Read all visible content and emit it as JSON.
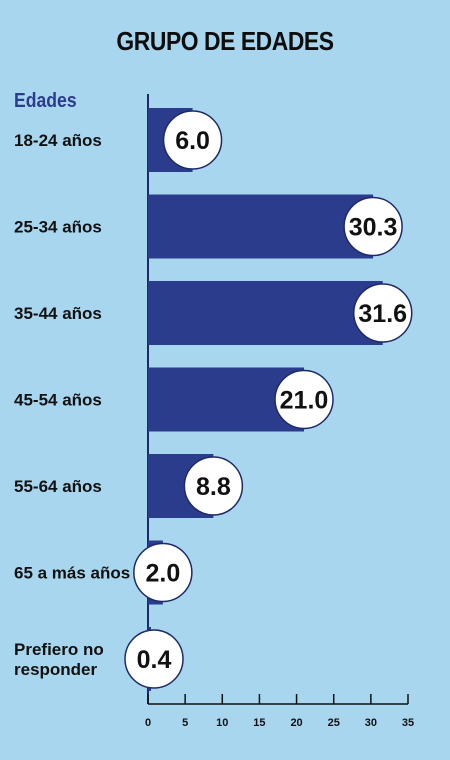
{
  "chart_data": {
    "type": "bar",
    "orientation": "horizontal",
    "title": "GRUPO DE EDADES",
    "category_header": "Edades",
    "categories": [
      "18-24 años",
      "25-34 años",
      "35-44 años",
      "45-54 años",
      "55-64 años",
      "65 a más años",
      "Prefiero no responder"
    ],
    "values": [
      6.0,
      30.3,
      31.6,
      21.0,
      8.8,
      2.0,
      0.4
    ],
    "value_labels": [
      "6.0",
      "30.3",
      "31.6",
      "21.0",
      "8.8",
      "2.0",
      "0.4"
    ],
    "xlim": [
      0,
      35
    ],
    "xticks": [
      "0",
      "5",
      "10",
      "15",
      "20",
      "25",
      "30",
      "35"
    ],
    "xlabel": "",
    "ylabel": "",
    "grid": false,
    "colors": {
      "bar": "#2b3c8c",
      "background": "#a8d6ee",
      "label_bubble": "#ffffff"
    }
  }
}
